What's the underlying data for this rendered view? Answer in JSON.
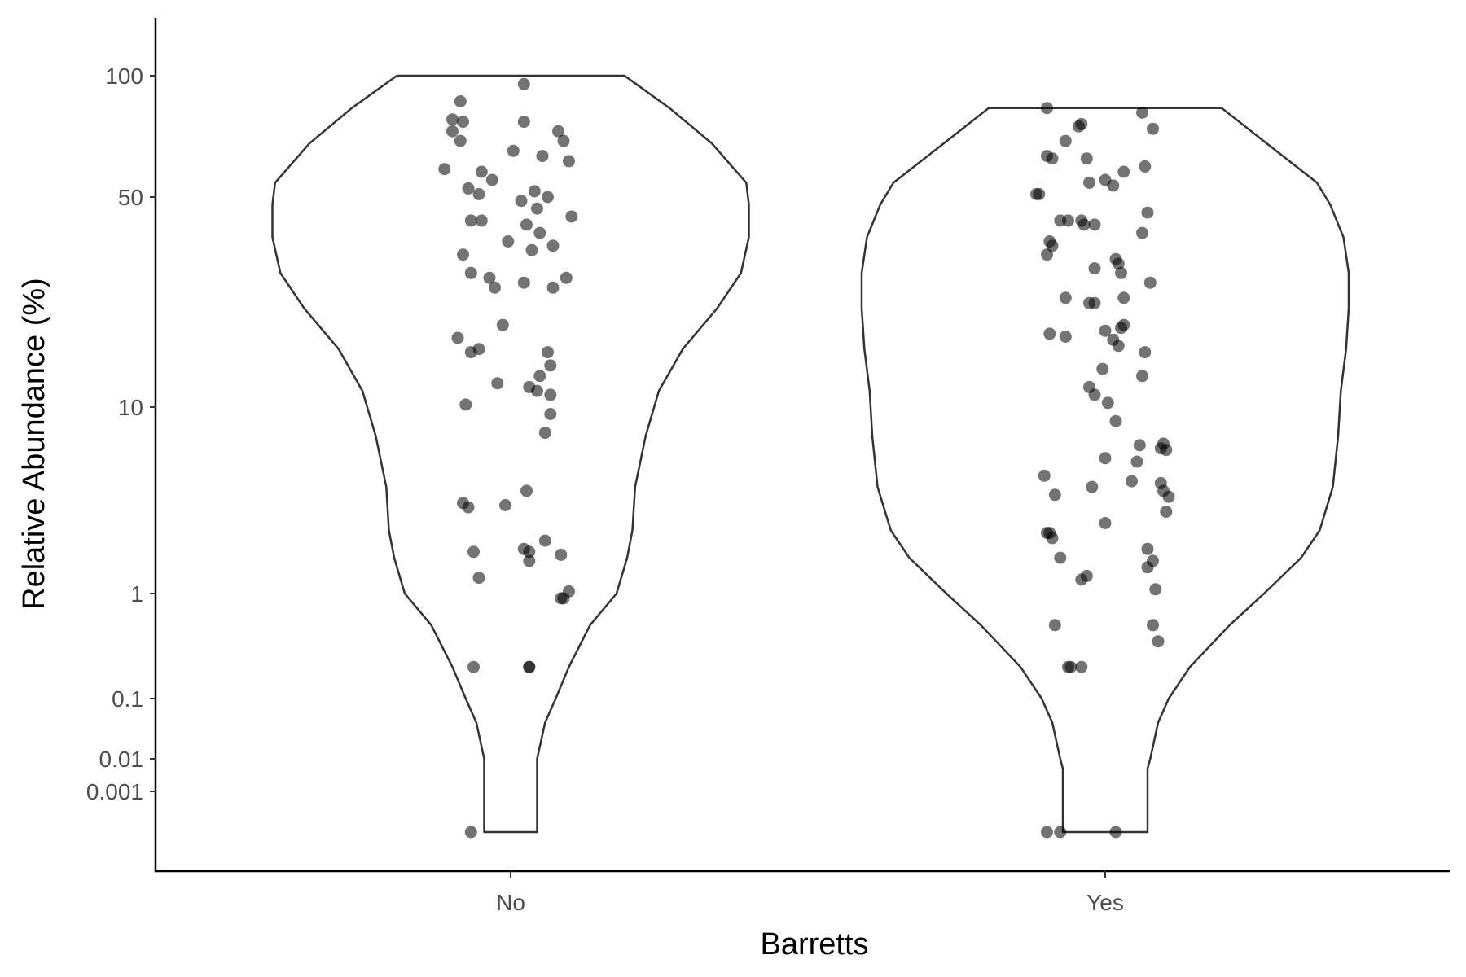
{
  "chart_data": {
    "type": "violin",
    "xlabel": "Barretts",
    "ylabel": "Relative Abundance (%)",
    "categories": [
      "No",
      "Yes"
    ],
    "y_ticks": [
      {
        "value": 0.001,
        "label": "0.001"
      },
      {
        "value": 0.01,
        "label": "0.01"
      },
      {
        "value": 0.1,
        "label": "0.1"
      },
      {
        "value": 1,
        "label": "1"
      },
      {
        "value": 10,
        "label": "10"
      },
      {
        "value": 50,
        "label": "50"
      },
      {
        "value": 100,
        "label": "100"
      }
    ],
    "point_color": "#000000",
    "violin_stroke": "#333333",
    "grid": false,
    "series": [
      {
        "category": "No",
        "violin_profile": [
          [
            0.0001,
            0.1
          ],
          [
            0.0005,
            0.1
          ],
          [
            0.001,
            0.1
          ],
          [
            0.005,
            0.1
          ],
          [
            0.01,
            0.1
          ],
          [
            0.04,
            0.13
          ],
          [
            0.1,
            0.17
          ],
          [
            0.2,
            0.22
          ],
          [
            0.5,
            0.3
          ],
          [
            1,
            0.4
          ],
          [
            2,
            0.44
          ],
          [
            3,
            0.46
          ],
          [
            5,
            0.47
          ],
          [
            8,
            0.51
          ],
          [
            12,
            0.56
          ],
          [
            18,
            0.65
          ],
          [
            25,
            0.78
          ],
          [
            32,
            0.87
          ],
          [
            40,
            0.9
          ],
          [
            48,
            0.9
          ],
          [
            55,
            0.89
          ],
          [
            70,
            0.76
          ],
          [
            85,
            0.6
          ],
          [
            100,
            0.43
          ]
        ],
        "points": [
          [
            96,
            0.05
          ],
          [
            88,
            -0.19
          ],
          [
            80,
            -0.22
          ],
          [
            79,
            -0.18
          ],
          [
            79,
            0.05
          ],
          [
            75,
            -0.22
          ],
          [
            75,
            0.18
          ],
          [
            71,
            -0.19
          ],
          [
            71,
            0.2
          ],
          [
            67,
            0.01
          ],
          [
            65,
            0.12
          ],
          [
            63,
            0.22
          ],
          [
            60,
            -0.25
          ],
          [
            59,
            -0.11
          ],
          [
            56,
            -0.07
          ],
          [
            53,
            -0.16
          ],
          [
            52,
            0.09
          ],
          [
            51,
            -0.12
          ],
          [
            50,
            0.14
          ],
          [
            49,
            0.04
          ],
          [
            47,
            0.1
          ],
          [
            45,
            0.23
          ],
          [
            44,
            -0.11
          ],
          [
            44,
            -0.15
          ],
          [
            43,
            0.06
          ],
          [
            41,
            0.11
          ],
          [
            39,
            -0.01
          ],
          [
            38,
            0.16
          ],
          [
            37,
            0.08
          ],
          [
            36,
            -0.18
          ],
          [
            32,
            -0.15
          ],
          [
            31,
            0.21
          ],
          [
            31,
            -0.08
          ],
          [
            30,
            0.05
          ],
          [
            29,
            0.16
          ],
          [
            29,
            -0.06
          ],
          [
            22,
            -0.03
          ],
          [
            19.8,
            -0.2
          ],
          [
            18,
            -0.12
          ],
          [
            17.5,
            -0.15
          ],
          [
            17.5,
            0.14
          ],
          [
            15.5,
            0.15
          ],
          [
            14,
            0.11
          ],
          [
            13,
            -0.05
          ],
          [
            12.5,
            0.07
          ],
          [
            12,
            0.1
          ],
          [
            11.5,
            0.15
          ],
          [
            10.3,
            -0.17
          ],
          [
            9.5,
            0.15
          ],
          [
            8.2,
            0.13
          ],
          [
            4.8,
            0.06
          ],
          [
            4.2,
            -0.18
          ],
          [
            4.1,
            -0.02
          ],
          [
            4.0,
            -0.16
          ],
          [
            2.6,
            0.13
          ],
          [
            2.3,
            0.05
          ],
          [
            2.2,
            -0.14
          ],
          [
            2.2,
            0.07
          ],
          [
            2.1,
            0.19
          ],
          [
            1.9,
            0.07
          ],
          [
            1.4,
            -0.12
          ],
          [
            1.05,
            0.22
          ],
          [
            0.9,
            0.19
          ],
          [
            0.9,
            0.2
          ],
          [
            0.2,
            -0.14
          ],
          [
            0.2,
            0.07
          ],
          [
            0.2,
            0.07
          ],
          [
            0.0001,
            -0.15
          ]
        ]
      },
      {
        "category": "Yes",
        "violin_profile": [
          [
            0.0001,
            0.16
          ],
          [
            0.0005,
            0.16
          ],
          [
            0.001,
            0.16
          ],
          [
            0.005,
            0.16
          ],
          [
            0.01,
            0.17
          ],
          [
            0.04,
            0.2
          ],
          [
            0.1,
            0.24
          ],
          [
            0.2,
            0.32
          ],
          [
            0.5,
            0.47
          ],
          [
            1,
            0.6
          ],
          [
            2,
            0.74
          ],
          [
            3,
            0.81
          ],
          [
            5,
            0.86
          ],
          [
            8,
            0.88
          ],
          [
            12,
            0.89
          ],
          [
            18,
            0.91
          ],
          [
            25,
            0.92
          ],
          [
            32,
            0.92
          ],
          [
            40,
            0.9
          ],
          [
            48,
            0.85
          ],
          [
            55,
            0.8
          ],
          [
            70,
            0.61
          ],
          [
            85,
            0.44
          ]
        ],
        "points": [
          [
            85,
            -0.22
          ],
          [
            83,
            0.14
          ],
          [
            78,
            -0.09
          ],
          [
            77,
            -0.1
          ],
          [
            76,
            0.18
          ],
          [
            71,
            -0.15
          ],
          [
            65,
            -0.22
          ],
          [
            64,
            -0.2
          ],
          [
            64,
            -0.07
          ],
          [
            61,
            0.15
          ],
          [
            59,
            0.07
          ],
          [
            56,
            0.0
          ],
          [
            55,
            -0.06
          ],
          [
            54,
            0.03
          ],
          [
            51,
            -0.26
          ],
          [
            51,
            -0.25
          ],
          [
            46,
            0.16
          ],
          [
            44,
            -0.17
          ],
          [
            44,
            -0.14
          ],
          [
            44,
            -0.09
          ],
          [
            43,
            -0.08
          ],
          [
            43,
            -0.04
          ],
          [
            41,
            0.14
          ],
          [
            39,
            -0.21
          ],
          [
            38,
            -0.2
          ],
          [
            36,
            -0.22
          ],
          [
            35,
            0.04
          ],
          [
            34,
            0.05
          ],
          [
            33,
            -0.04
          ],
          [
            32,
            0.06
          ],
          [
            30,
            0.17
          ],
          [
            27,
            0.07
          ],
          [
            27,
            -0.15
          ],
          [
            26,
            -0.06
          ],
          [
            26,
            -0.04
          ],
          [
            22,
            0.07
          ],
          [
            21.5,
            0.06
          ],
          [
            21,
            0.0
          ],
          [
            20.5,
            -0.21
          ],
          [
            20,
            -0.15
          ],
          [
            19.5,
            0.03
          ],
          [
            18.5,
            0.05
          ],
          [
            17.5,
            0.15
          ],
          [
            15,
            -0.01
          ],
          [
            14,
            0.14
          ],
          [
            12.5,
            -0.06
          ],
          [
            11.5,
            -0.04
          ],
          [
            10.5,
            0.01
          ],
          [
            9.0,
            0.04
          ],
          [
            7.5,
            0.22
          ],
          [
            7.4,
            0.13
          ],
          [
            7.2,
            0.21
          ],
          [
            7.1,
            0.23
          ],
          [
            6.6,
            0.0
          ],
          [
            6.4,
            0.12
          ],
          [
            5.6,
            -0.23
          ],
          [
            5.3,
            0.1
          ],
          [
            5.2,
            0.21
          ],
          [
            5.0,
            -0.05
          ],
          [
            4.8,
            0.22
          ],
          [
            4.6,
            -0.19
          ],
          [
            4.5,
            0.24
          ],
          [
            3.8,
            0.23
          ],
          [
            3.3,
            0.0
          ],
          [
            2.9,
            -0.22
          ],
          [
            2.9,
            -0.21
          ],
          [
            2.7,
            -0.2
          ],
          [
            2.3,
            0.16
          ],
          [
            2.0,
            -0.17
          ],
          [
            1.9,
            0.18
          ],
          [
            1.7,
            0.16
          ],
          [
            1.45,
            -0.07
          ],
          [
            1.35,
            -0.09
          ],
          [
            1.1,
            0.19
          ],
          [
            0.5,
            -0.19
          ],
          [
            0.5,
            0.18
          ],
          [
            0.35,
            0.2
          ],
          [
            0.2,
            -0.14
          ],
          [
            0.2,
            -0.13
          ],
          [
            0.2,
            -0.09
          ],
          [
            0.0001,
            -0.22
          ],
          [
            0.0001,
            -0.17
          ],
          [
            0.0001,
            0.04
          ]
        ]
      }
    ]
  }
}
